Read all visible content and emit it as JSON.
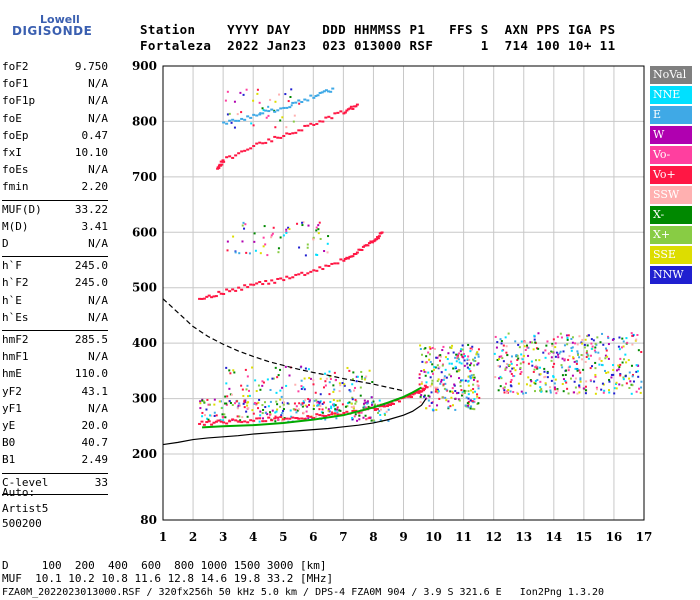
{
  "logo": {
    "line1": "Lowell",
    "line2": "DIGISONDE"
  },
  "header": {
    "row1": "Station    YYYY DAY    DDD HHMMSS P1   FFS S  AXN PPS IGA PS",
    "row2": "Fortaleza  2022 Jan23  023 013000 RSF      1  714 100 10+ 11"
  },
  "params": [
    {
      "name": "foF2",
      "value": "9.750"
    },
    {
      "name": "foF1",
      "value": "N/A"
    },
    {
      "name": "foF1p",
      "value": "N/A"
    },
    {
      "name": "foE",
      "value": "N/A"
    },
    {
      "name": "foEp",
      "value": "0.47"
    },
    {
      "name": "fxI",
      "value": "10.10"
    },
    {
      "name": "foEs",
      "value": "N/A"
    },
    {
      "name": "fmin",
      "value": "2.20"
    },
    {
      "name": "MUF(D)",
      "value": "33.22"
    },
    {
      "name": "M(D)",
      "value": "3.41"
    },
    {
      "name": "D",
      "value": "N/A"
    },
    {
      "name": "h`F",
      "value": "245.0"
    },
    {
      "name": "h`F2",
      "value": "245.0"
    },
    {
      "name": "h`E",
      "value": "N/A"
    },
    {
      "name": "h`Es",
      "value": "N/A"
    },
    {
      "name": "hmF2",
      "value": "285.5"
    },
    {
      "name": "hmF1",
      "value": "N/A"
    },
    {
      "name": "hmE",
      "value": "110.0"
    },
    {
      "name": "yF2",
      "value": "43.1"
    },
    {
      "name": "yF1",
      "value": "N/A"
    },
    {
      "name": "yE",
      "value": "20.0"
    },
    {
      "name": "B0",
      "value": "40.7"
    },
    {
      "name": "B1",
      "value": "2.49"
    },
    {
      "name": "C-level",
      "value": "33"
    }
  ],
  "auto": {
    "line1": "Auto:",
    "line2": "Artist5",
    "line3": "500200"
  },
  "legend": [
    {
      "label": "NoVal",
      "color": "#7f7f7f"
    },
    {
      "label": "NNE",
      "color": "#00e0ff"
    },
    {
      "label": "E",
      "color": "#3fa9e6"
    },
    {
      "label": "W",
      "color": "#b000b0"
    },
    {
      "label": "Vo-",
      "color": "#ff3f9f"
    },
    {
      "label": "Vo+",
      "color": "#ff1744"
    },
    {
      "label": "SSW",
      "color": "#ffb0b0"
    },
    {
      "label": "X-",
      "color": "#008800"
    },
    {
      "label": "X+",
      "color": "#88cc44"
    },
    {
      "label": "SSE",
      "color": "#dddd00"
    },
    {
      "label": "NNW",
      "color": "#2020d0"
    }
  ],
  "footer": {
    "d_row": "D     100  200  400  600  800 1000 1500 3000 [km]",
    "muf_row": "MUF  10.1 10.2 10.8 11.6 12.8 14.6 19.8 33.2 [MHz]",
    "info_row": "FZA0M_2022023013000.RSF / 320fx256h 50 kHz 5.0 km / DPS-4 FZA0M 904 / 3.9 S 321.6 E   Ion2Png 1.3.20"
  },
  "chart_data": {
    "type": "scatter",
    "xlabel": "",
    "ylabel": "",
    "xlim": [
      1,
      17
    ],
    "ylim": [
      80,
      900
    ],
    "x_ticks": [
      1,
      2,
      3,
      4,
      5,
      6,
      7,
      8,
      9,
      10,
      11,
      12,
      13,
      14,
      15,
      16,
      17
    ],
    "y_ticks": [
      80,
      200,
      300,
      400,
      500,
      600,
      700,
      800,
      900
    ],
    "grid": true,
    "curves": [
      {
        "name": "",
        "style": "dashed",
        "color": "#000000",
        "x": [
          1.0,
          1.5,
          2.0,
          2.5,
          3.0,
          3.5,
          4.0,
          4.5,
          5.0,
          5.5,
          6.0,
          6.5,
          7.0,
          7.5,
          8.0,
          8.5,
          9.0
        ],
        "y": [
          480,
          455,
          430,
          412,
          398,
          386,
          376,
          367,
          360,
          353,
          347,
          342,
          336,
          331,
          326,
          320,
          314
        ]
      },
      {
        "name": "",
        "style": "solid",
        "color": "#000000",
        "x": [
          1.0,
          1.5,
          2.0,
          2.5,
          3.0,
          3.5,
          4.0,
          4.5,
          5.0,
          5.5,
          6.0,
          6.5,
          7.0,
          7.5,
          8.0,
          8.5,
          9.0,
          9.3,
          9.6,
          9.75
        ],
        "y": [
          217,
          221,
          226,
          229,
          231,
          233,
          236,
          238,
          240,
          242,
          244,
          246,
          249,
          252,
          256,
          262,
          270,
          277,
          288,
          300
        ]
      },
      {
        "name": "",
        "style": "solid",
        "color": "#00aa00",
        "x": [
          2.3,
          3.0,
          4.0,
          5.0,
          6.0,
          7.0,
          7.5,
          8.0,
          8.5,
          9.0,
          9.3,
          9.6
        ],
        "y": [
          248,
          250,
          252,
          256,
          262,
          270,
          277,
          284,
          293,
          303,
          311,
          320
        ]
      }
    ],
    "echo_traces": [
      {
        "name": "F2 O-trace",
        "color": "#ff1744",
        "x": [
          2.2,
          3.0,
          4.0,
          5.0,
          6.0,
          7.0,
          8.0,
          8.5,
          9.0,
          9.5,
          9.8
        ],
        "y": [
          255,
          258,
          261,
          264,
          268,
          273,
          282,
          290,
          300,
          312,
          325
        ]
      },
      {
        "name": "2F trace",
        "color": "#ff1744",
        "x": [
          2.2,
          3.0,
          4.0,
          5.0,
          6.0,
          7.0,
          7.5,
          8.0,
          8.3
        ],
        "y": [
          480,
          492,
          505,
          515,
          530,
          550,
          565,
          585,
          600
        ]
      },
      {
        "name": "3F trace",
        "color": "#ff1744",
        "x": [
          2.8,
          3.0,
          4.0,
          5.0,
          6.0,
          7.0,
          7.5
        ],
        "y": [
          715,
          730,
          755,
          775,
          795,
          818,
          830
        ]
      },
      {
        "name": "upper trace",
        "color": "#3fa9e6",
        "x": [
          3.0,
          4.0,
          5.0,
          6.0,
          6.7
        ],
        "y": [
          795,
          810,
          825,
          845,
          860
        ]
      }
    ]
  }
}
